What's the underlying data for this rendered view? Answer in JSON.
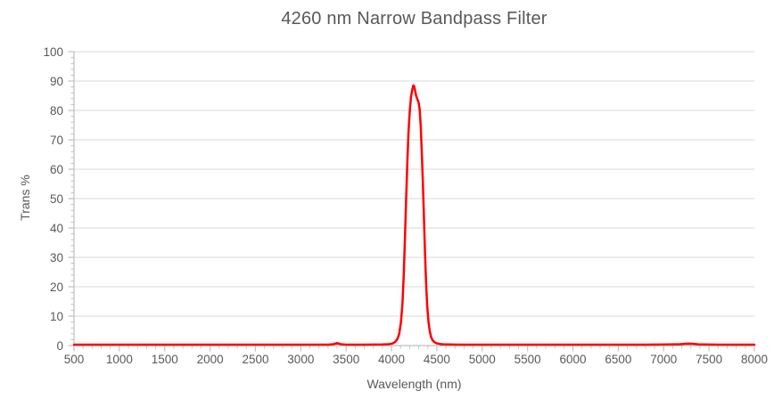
{
  "chart_data": {
    "type": "line",
    "title": "4260 nm Narrow Bandpass Filter",
    "xlabel": "Wavelength (nm)",
    "ylabel": "Trans %",
    "xlim": [
      500,
      8000
    ],
    "ylim": [
      0,
      100
    ],
    "x_major_ticks": [
      500,
      1000,
      1500,
      2000,
      2500,
      3000,
      3500,
      4000,
      4500,
      5000,
      5500,
      6000,
      6500,
      7000,
      7500,
      8000
    ],
    "x_minor_step": 100,
    "y_major_ticks": [
      0,
      10,
      20,
      30,
      40,
      50,
      60,
      70,
      80,
      90,
      100
    ],
    "y_minor_step": 2,
    "grid": "horizontal-only",
    "legend": "none",
    "colors": {
      "line": "#FF0000",
      "gridline": "#D9D9D9",
      "axis": "#BFBFBF",
      "tick": "#BFBFBF",
      "text": "#595959"
    },
    "series": [
      {
        "name": "Trans %",
        "color": "#FF0000",
        "points": [
          [
            500,
            0.3
          ],
          [
            700,
            0.3
          ],
          [
            1000,
            0.3
          ],
          [
            1300,
            0.3
          ],
          [
            1600,
            0.3
          ],
          [
            2000,
            0.3
          ],
          [
            2400,
            0.3
          ],
          [
            2800,
            0.3
          ],
          [
            3100,
            0.3
          ],
          [
            3300,
            0.3
          ],
          [
            3360,
            0.45
          ],
          [
            3400,
            0.85
          ],
          [
            3440,
            0.45
          ],
          [
            3500,
            0.3
          ],
          [
            3700,
            0.3
          ],
          [
            3900,
            0.35
          ],
          [
            3970,
            0.45
          ],
          [
            4010,
            0.7
          ],
          [
            4040,
            1.2
          ],
          [
            4065,
            2.2
          ],
          [
            4085,
            4
          ],
          [
            4105,
            8
          ],
          [
            4120,
            14
          ],
          [
            4135,
            24
          ],
          [
            4150,
            38
          ],
          [
            4162,
            50
          ],
          [
            4175,
            63
          ],
          [
            4188,
            73
          ],
          [
            4202,
            80
          ],
          [
            4215,
            84.5
          ],
          [
            4228,
            87
          ],
          [
            4240,
            88.5
          ],
          [
            4250,
            88.2
          ],
          [
            4260,
            86.8
          ],
          [
            4272,
            85
          ],
          [
            4285,
            83.8
          ],
          [
            4298,
            82.8
          ],
          [
            4310,
            80.5
          ],
          [
            4322,
            75
          ],
          [
            4334,
            66
          ],
          [
            4346,
            55
          ],
          [
            4358,
            43
          ],
          [
            4370,
            31
          ],
          [
            4382,
            21
          ],
          [
            4394,
            13.5
          ],
          [
            4408,
            8
          ],
          [
            4422,
            4.8
          ],
          [
            4438,
            2.8
          ],
          [
            4455,
            1.7
          ],
          [
            4475,
            1.1
          ],
          [
            4500,
            0.75
          ],
          [
            4530,
            0.55
          ],
          [
            4570,
            0.42
          ],
          [
            4630,
            0.35
          ],
          [
            4750,
            0.3
          ],
          [
            5000,
            0.3
          ],
          [
            5300,
            0.3
          ],
          [
            5600,
            0.3
          ],
          [
            6000,
            0.3
          ],
          [
            6400,
            0.3
          ],
          [
            6800,
            0.3
          ],
          [
            7050,
            0.35
          ],
          [
            7180,
            0.45
          ],
          [
            7260,
            0.65
          ],
          [
            7320,
            0.6
          ],
          [
            7380,
            0.42
          ],
          [
            7450,
            0.35
          ],
          [
            7600,
            0.3
          ],
          [
            7800,
            0.3
          ],
          [
            8000,
            0.3
          ]
        ]
      }
    ]
  }
}
